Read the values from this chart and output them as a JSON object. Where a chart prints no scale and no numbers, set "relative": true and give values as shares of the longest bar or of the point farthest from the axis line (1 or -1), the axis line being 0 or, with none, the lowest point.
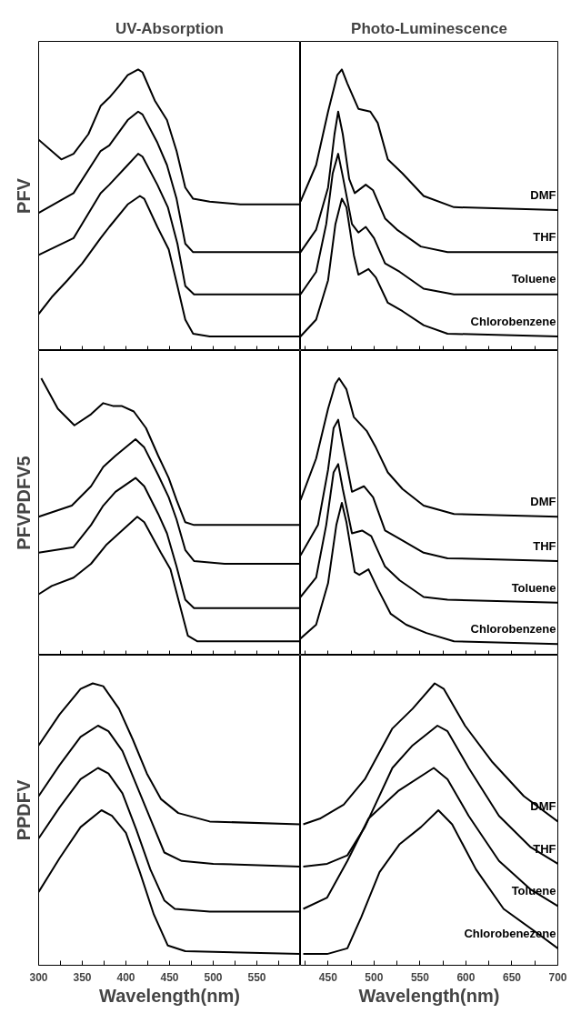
{
  "chart_data": [
    {
      "type": "line",
      "relative": true,
      "title": "UV-Absorption",
      "ylabel": "PFV",
      "grid": false,
      "tick_labels": false,
      "xlim": [
        300,
        600
      ],
      "xticks": [
        300,
        325,
        350,
        375,
        400,
        425,
        450,
        475,
        500,
        525,
        550,
        575
      ],
      "series": [
        {
          "color": "#000000",
          "x": [
            300,
            326,
            340,
            357,
            371,
            381,
            392,
            402,
            414,
            419,
            433,
            447,
            458,
            468,
            477,
            496,
            531,
            600
          ],
          "values": [
            0.75,
            0.68,
            0.7,
            0.77,
            0.87,
            0.9,
            0.94,
            0.98,
            1.0,
            0.99,
            0.89,
            0.82,
            0.71,
            0.58,
            0.54,
            0.53,
            0.52,
            0.52
          ]
        },
        {
          "color": "#000000",
          "x": [
            300,
            340,
            371,
            381,
            402,
            414,
            419,
            436,
            447,
            458,
            468,
            477,
            513,
            600
          ],
          "values": [
            0.49,
            0.56,
            0.71,
            0.73,
            0.82,
            0.85,
            0.84,
            0.74,
            0.66,
            0.54,
            0.38,
            0.35,
            0.35,
            0.35
          ]
        },
        {
          "color": "#000000",
          "x": [
            300,
            340,
            371,
            381,
            402,
            414,
            419,
            436,
            448,
            459,
            468,
            478,
            513,
            600
          ],
          "values": [
            0.34,
            0.4,
            0.56,
            0.59,
            0.66,
            0.7,
            0.69,
            0.59,
            0.51,
            0.38,
            0.23,
            0.2,
            0.2,
            0.2
          ]
        },
        {
          "color": "#000000",
          "x": [
            300,
            315,
            333,
            350,
            371,
            381,
            402,
            416,
            421,
            436,
            449,
            459,
            468,
            477,
            496,
            600
          ],
          "values": [
            0.13,
            0.19,
            0.25,
            0.31,
            0.4,
            0.44,
            0.52,
            0.55,
            0.54,
            0.44,
            0.36,
            0.23,
            0.11,
            0.06,
            0.05,
            0.05
          ]
        }
      ]
    },
    {
      "type": "line",
      "relative": true,
      "title": "Photo-Luminescence",
      "grid": false,
      "tick_labels": false,
      "xlim": [
        420,
        700
      ],
      "xticks": [
        425,
        450,
        475,
        500,
        525,
        550,
        575,
        600,
        625,
        650,
        675
      ],
      "series": [
        {
          "name": "DMF",
          "color": "#000000",
          "x": [
            420,
            437,
            450,
            460,
            465,
            471,
            483,
            496,
            504,
            515,
            531,
            554,
            587,
            700
          ],
          "values": [
            0.53,
            0.66,
            0.85,
            0.98,
            1.0,
            0.95,
            0.86,
            0.85,
            0.81,
            0.68,
            0.63,
            0.55,
            0.51,
            0.5
          ]
        },
        {
          "name": "THF",
          "color": "#000000",
          "x": [
            420,
            437,
            450,
            457,
            461,
            466,
            473,
            479,
            491,
            499,
            512,
            525,
            551,
            580,
            700
          ],
          "values": [
            0.35,
            0.43,
            0.58,
            0.77,
            0.85,
            0.77,
            0.61,
            0.56,
            0.59,
            0.57,
            0.47,
            0.43,
            0.37,
            0.35,
            0.35
          ]
        },
        {
          "name": "Toluene",
          "color": "#000000",
          "x": [
            420,
            437,
            448,
            455,
            461,
            466,
            476,
            483,
            491,
            500,
            512,
            528,
            554,
            587,
            700
          ],
          "values": [
            0.2,
            0.28,
            0.45,
            0.63,
            0.7,
            0.62,
            0.45,
            0.42,
            0.44,
            0.4,
            0.31,
            0.28,
            0.22,
            0.2,
            0.2
          ]
        },
        {
          "name": "Chlorobenzene",
          "color": "#000000",
          "x": [
            420,
            437,
            450,
            458,
            465,
            470,
            478,
            483,
            494,
            502,
            515,
            531,
            554,
            580,
            700
          ],
          "values": [
            0.05,
            0.11,
            0.25,
            0.45,
            0.54,
            0.51,
            0.34,
            0.27,
            0.29,
            0.26,
            0.17,
            0.14,
            0.09,
            0.06,
            0.05
          ]
        }
      ]
    },
    {
      "type": "line",
      "relative": true,
      "ylabel": "PFVPDFV5",
      "grid": false,
      "tick_labels": false,
      "xlim": [
        300,
        600
      ],
      "xticks": [
        300,
        325,
        350,
        375,
        400,
        425,
        450,
        475,
        500,
        525,
        550,
        575
      ],
      "series": [
        {
          "color": "#000000",
          "x": [
            303,
            322,
            341,
            360,
            374,
            385,
            395,
            409,
            423,
            437,
            449,
            458,
            468,
            478,
            518,
            520,
            600
          ],
          "values": [
            1.0,
            0.89,
            0.83,
            0.87,
            0.91,
            0.9,
            0.9,
            0.88,
            0.82,
            0.72,
            0.64,
            0.56,
            0.48,
            0.47,
            0.47,
            0.47,
            0.47
          ]
        },
        {
          "color": "#000000",
          "x": [
            300,
            338,
            360,
            374,
            388,
            411,
            421,
            437,
            449,
            458,
            468,
            478,
            513,
            600
          ],
          "values": [
            0.5,
            0.54,
            0.61,
            0.68,
            0.72,
            0.78,
            0.75,
            0.65,
            0.57,
            0.49,
            0.38,
            0.34,
            0.33,
            0.33
          ]
        },
        {
          "color": "#000000",
          "x": [
            300,
            340,
            360,
            374,
            388,
            411,
            421,
            437,
            447,
            458,
            468,
            478,
            513,
            600
          ],
          "values": [
            0.37,
            0.39,
            0.47,
            0.54,
            0.59,
            0.64,
            0.61,
            0.51,
            0.44,
            0.32,
            0.2,
            0.17,
            0.17,
            0.17
          ]
        },
        {
          "color": "#000000",
          "x": [
            300,
            315,
            340,
            360,
            378,
            392,
            413,
            421,
            440,
            451,
            461,
            471,
            482,
            600
          ],
          "values": [
            0.22,
            0.25,
            0.28,
            0.33,
            0.4,
            0.44,
            0.5,
            0.48,
            0.37,
            0.31,
            0.19,
            0.07,
            0.05,
            0.05
          ]
        }
      ]
    },
    {
      "type": "line",
      "relative": true,
      "grid": false,
      "tick_labels": false,
      "xlim": [
        420,
        700
      ],
      "xticks": [
        425,
        450,
        475,
        500,
        525,
        550,
        575,
        600,
        625,
        650,
        675
      ],
      "series": [
        {
          "name": "DMF",
          "color": "#000000",
          "x": [
            420,
            437,
            450,
            458,
            462,
            470,
            478,
            492,
            502,
            515,
            531,
            554,
            587,
            700
          ],
          "values": [
            0.56,
            0.71,
            0.89,
            0.98,
            1.0,
            0.96,
            0.86,
            0.81,
            0.75,
            0.66,
            0.6,
            0.54,
            0.51,
            0.5
          ]
        },
        {
          "name": "THF",
          "color": "#000000",
          "x": [
            420,
            439,
            450,
            456,
            461,
            466,
            476,
            489,
            499,
            512,
            528,
            554,
            580,
            700
          ],
          "values": [
            0.36,
            0.47,
            0.67,
            0.82,
            0.85,
            0.76,
            0.59,
            0.61,
            0.57,
            0.45,
            0.42,
            0.37,
            0.35,
            0.34
          ]
        },
        {
          "name": "Toluene",
          "color": "#000000",
          "x": [
            420,
            437,
            448,
            456,
            461,
            466,
            476,
            487,
            497,
            512,
            528,
            554,
            580,
            700
          ],
          "values": [
            0.21,
            0.28,
            0.47,
            0.66,
            0.69,
            0.6,
            0.44,
            0.45,
            0.43,
            0.32,
            0.27,
            0.21,
            0.2,
            0.19
          ]
        },
        {
          "name": "Chlorobenzene",
          "color": "#000000",
          "x": [
            420,
            437,
            450,
            459,
            465,
            470,
            479,
            484,
            494,
            504,
            518,
            535,
            557,
            587,
            700
          ],
          "values": [
            0.06,
            0.11,
            0.26,
            0.47,
            0.55,
            0.48,
            0.3,
            0.29,
            0.31,
            0.24,
            0.15,
            0.11,
            0.08,
            0.05,
            0.04
          ]
        }
      ]
    },
    {
      "type": "line",
      "relative": true,
      "ylabel": "PPDFV",
      "xlabel": "Wavelength(nm)",
      "grid": false,
      "xlim": [
        300,
        600
      ],
      "xticks": [
        300,
        {
          "value": 325,
          "label": null
        },
        350,
        {
          "value": 375,
          "label": null
        },
        400,
        {
          "value": 425,
          "label": null
        },
        450,
        {
          "value": 475,
          "label": null
        },
        500,
        {
          "value": 525,
          "label": null
        },
        550,
        {
          "value": 575,
          "label": null
        }
      ],
      "series": [
        {
          "color": "#000000",
          "x": [
            300,
            324,
            348,
            362,
            374,
            392,
            408,
            424,
            440,
            460,
            496,
            600
          ],
          "values": [
            0.78,
            0.89,
            0.98,
            1.0,
            0.99,
            0.91,
            0.8,
            0.68,
            0.59,
            0.54,
            0.51,
            0.5
          ]
        },
        {
          "color": "#000000",
          "x": [
            300,
            324,
            348,
            368,
            380,
            396,
            412,
            428,
            444,
            464,
            500,
            600
          ],
          "values": [
            0.6,
            0.71,
            0.81,
            0.85,
            0.83,
            0.76,
            0.64,
            0.52,
            0.4,
            0.37,
            0.36,
            0.35
          ]
        },
        {
          "color": "#000000",
          "x": [
            300,
            324,
            348,
            368,
            380,
            396,
            412,
            428,
            444,
            456,
            496,
            600
          ],
          "values": [
            0.45,
            0.56,
            0.66,
            0.7,
            0.68,
            0.61,
            0.48,
            0.34,
            0.23,
            0.2,
            0.19,
            0.19
          ]
        },
        {
          "color": "#000000",
          "x": [
            300,
            324,
            348,
            372,
            384,
            400,
            416,
            432,
            448,
            468,
            600
          ],
          "values": [
            0.26,
            0.38,
            0.49,
            0.55,
            0.53,
            0.47,
            0.33,
            0.18,
            0.07,
            0.05,
            0.04
          ]
        }
      ]
    },
    {
      "type": "line",
      "relative": true,
      "xlabel": "Wavelength(nm)",
      "grid": false,
      "xlim": [
        420,
        700
      ],
      "xticks": [
        {
          "value": 425,
          "label": null
        },
        450,
        {
          "value": 475,
          "label": null
        },
        500,
        {
          "value": 525,
          "label": null
        },
        550,
        {
          "value": 575,
          "label": null
        },
        600,
        {
          "value": 625,
          "label": null
        },
        650,
        {
          "value": 675,
          "label": null
        },
        700
      ],
      "series": [
        {
          "name": "DMF",
          "color": "#000000",
          "x": [
            423,
            441,
            467,
            490,
            520,
            542,
            566,
            576,
            599,
            629,
            663,
            700
          ],
          "values": [
            0.5,
            0.52,
            0.57,
            0.66,
            0.84,
            0.91,
            1.0,
            0.98,
            0.85,
            0.72,
            0.6,
            0.51
          ]
        },
        {
          "name": "THF",
          "color": "#000000",
          "x": [
            423,
            449,
            471,
            490,
            520,
            542,
            569,
            580,
            603,
            636,
            670,
            700
          ],
          "values": [
            0.35,
            0.36,
            0.39,
            0.49,
            0.7,
            0.78,
            0.85,
            0.83,
            0.7,
            0.53,
            0.42,
            0.36
          ]
        },
        {
          "name": "Toluene",
          "color": "#000000",
          "x": [
            423,
            449,
            471,
            494,
            527,
            565,
            580,
            603,
            636,
            670,
            700
          ],
          "values": [
            0.2,
            0.24,
            0.37,
            0.52,
            0.62,
            0.7,
            0.66,
            0.53,
            0.37,
            0.27,
            0.21
          ]
        },
        {
          "name": "Chlorobenezene",
          "color": "#000000",
          "x": [
            423,
            449,
            471,
            486,
            506,
            528,
            551,
            570,
            585,
            611,
            641,
            675,
            700
          ],
          "values": [
            0.04,
            0.04,
            0.06,
            0.17,
            0.33,
            0.43,
            0.49,
            0.55,
            0.5,
            0.34,
            0.2,
            0.12,
            0.06
          ]
        }
      ]
    }
  ]
}
